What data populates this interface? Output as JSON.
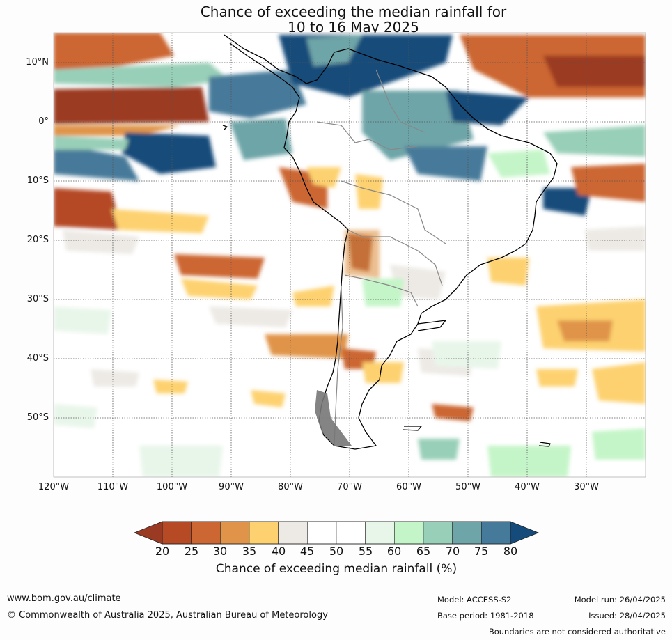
{
  "title": {
    "line1": "Chance of exceeding the median rainfall for",
    "line2": "10 to 16 May 2025"
  },
  "map": {
    "lat_labels": [
      "10°N",
      "0°",
      "10°S",
      "20°S",
      "30°S",
      "40°S",
      "50°S"
    ],
    "lon_labels": [
      "120°W",
      "110°W",
      "100°W",
      "90°W",
      "80°W",
      "70°W",
      "60°W",
      "50°W",
      "40°W",
      "30°W"
    ],
    "lat_range": [
      -60,
      15
    ],
    "lon_range": [
      -120,
      -20
    ],
    "gridlines": true
  },
  "colorbar": {
    "ticks": [
      "20",
      "25",
      "30",
      "35",
      "40",
      "45",
      "50",
      "55",
      "60",
      "65",
      "70",
      "75",
      "80"
    ],
    "colors": [
      "#9b3a22",
      "#b54a25",
      "#cc6632",
      "#e0944a",
      "#fdd170",
      "#edeae5",
      "#ffffff",
      "#ffffff",
      "#e8f6ea",
      "#c4f5c8",
      "#98cfb8",
      "#6ea5a8",
      "#467a9a",
      "#144b7a"
    ],
    "label": "Chance of exceeding median rainfall (%)"
  },
  "footer": {
    "url": "www.bom.gov.au/climate",
    "copyright": "© Commonwealth of Australia 2025, Australian Bureau of Meteorology",
    "model": "Model: ACCESS-S2",
    "base_period": "Base period: 1981-2018",
    "model_run": "Model run: 26/04/2025",
    "issued": "Issued: 28/04/2025",
    "disclaimer": "Boundaries are not considered authoritative"
  }
}
